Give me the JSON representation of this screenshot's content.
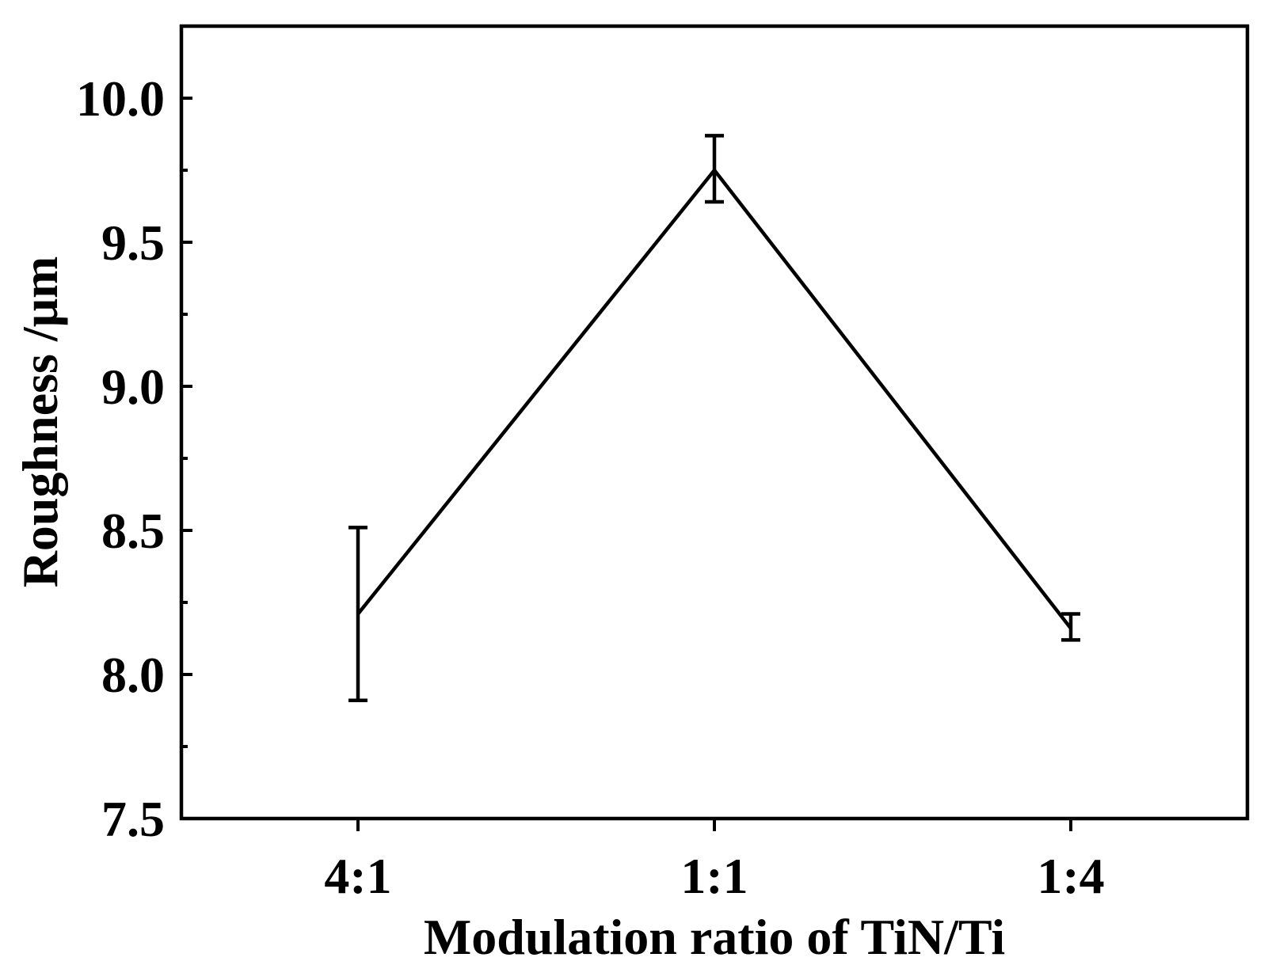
{
  "chart_data": {
    "type": "line",
    "title": "",
    "xlabel": "Modulation ratio of TiN/Ti",
    "ylabel": "Roughness /μm",
    "categories": [
      "4:1",
      "1:1",
      "1:4"
    ],
    "series": [
      {
        "values": [
          8.21,
          9.75,
          8.16
        ],
        "err_low": [
          7.91,
          9.64,
          8.12
        ],
        "err_high": [
          8.51,
          9.87,
          8.21
        ]
      }
    ],
    "ylim": [
      7.5,
      10.25
    ],
    "yticks": [
      7.5,
      8.0,
      8.5,
      9.0,
      9.5,
      10.0
    ],
    "ytick_labels": [
      "7.5",
      "8.0",
      "8.5",
      "9.0",
      "9.5",
      "10.0"
    ],
    "ytick_minor": [
      7.75,
      8.25,
      8.75,
      9.25,
      9.75,
      10.25
    ],
    "grid": false,
    "legend": "none",
    "color": "#000000"
  }
}
